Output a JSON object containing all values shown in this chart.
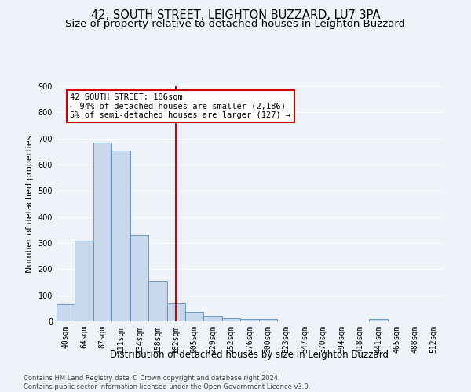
{
  "title": "42, SOUTH STREET, LEIGHTON BUZZARD, LU7 3PA",
  "subtitle": "Size of property relative to detached houses in Leighton Buzzard",
  "xlabel": "Distribution of detached houses by size in Leighton Buzzard",
  "ylabel": "Number of detached properties",
  "categories": [
    "40sqm",
    "64sqm",
    "87sqm",
    "111sqm",
    "134sqm",
    "158sqm",
    "182sqm",
    "205sqm",
    "229sqm",
    "252sqm",
    "276sqm",
    "300sqm",
    "323sqm",
    "347sqm",
    "370sqm",
    "394sqm",
    "418sqm",
    "441sqm",
    "465sqm",
    "488sqm",
    "512sqm"
  ],
  "values": [
    65,
    310,
    685,
    655,
    330,
    152,
    68,
    36,
    22,
    12,
    10,
    8,
    0,
    0,
    0,
    0,
    0,
    10,
    0,
    0,
    0
  ],
  "bar_color": "#c8d8ed",
  "bar_edge_color": "#5b8db8",
  "background_color": "#eef2f9",
  "grid_color": "#ffffff",
  "vline_x_index": 6,
  "vline_color": "#cc0000",
  "annotation_line1": "42 SOUTH STREET: 186sqm",
  "annotation_line2": "← 94% of detached houses are smaller (2,186)",
  "annotation_line3": "5% of semi-detached houses are larger (127) →",
  "footer_line1": "Contains HM Land Registry data © Crown copyright and database right 2024.",
  "footer_line2": "Contains public sector information licensed under the Open Government Licence v3.0.",
  "ylim": [
    0,
    900
  ],
  "yticks": [
    0,
    100,
    200,
    300,
    400,
    500,
    600,
    700,
    800,
    900
  ],
  "title_fontsize": 10.5,
  "subtitle_fontsize": 9.5,
  "xlabel_fontsize": 8.5,
  "ylabel_fontsize": 8,
  "tick_fontsize": 7,
  "annotation_fontsize": 7.5,
  "footer_fontsize": 6.0
}
